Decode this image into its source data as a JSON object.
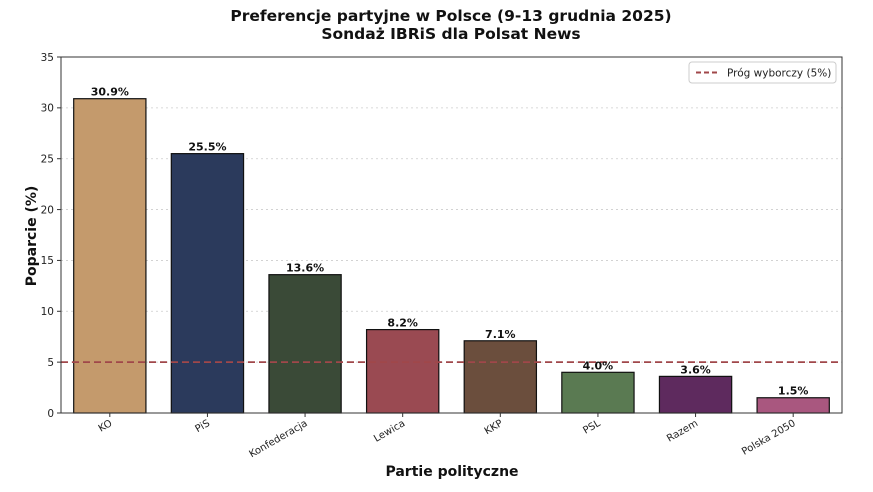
{
  "chart_data": {
    "type": "bar",
    "title": "Preferencje partyjne w Polsce (9-13 grudnia 2025)",
    "subtitle": "Sondaż IBRiS dla Polsat News",
    "xlabel": "Partie polityczne",
    "ylabel": "Poparcie (%)",
    "ylim": [
      0,
      35
    ],
    "yticks": [
      0,
      5,
      10,
      15,
      20,
      25,
      30,
      35
    ],
    "grid": "horizontal dotted",
    "categories": [
      "KO",
      "PiS",
      "Konfederacja",
      "Lewica",
      "KKP",
      "PSL",
      "Razem",
      "Polska 2050"
    ],
    "values": [
      30.9,
      25.5,
      13.6,
      8.2,
      7.1,
      4.0,
      3.6,
      1.5
    ],
    "value_labels": [
      "30.9%",
      "25.5%",
      "13.6%",
      "8.2%",
      "7.1%",
      "4.0%",
      "3.6%",
      "1.5%"
    ],
    "colors": [
      "#c49a6c",
      "#2b3a5c",
      "#3a4a37",
      "#9a4a52",
      "#6b4e3d",
      "#5a7a52",
      "#5e2a5e",
      "#a9577f"
    ],
    "threshold": {
      "value": 5,
      "label": "Próg wyborczy (5%)",
      "color": "#a0474a"
    },
    "legend": {
      "position": "top-right"
    }
  }
}
